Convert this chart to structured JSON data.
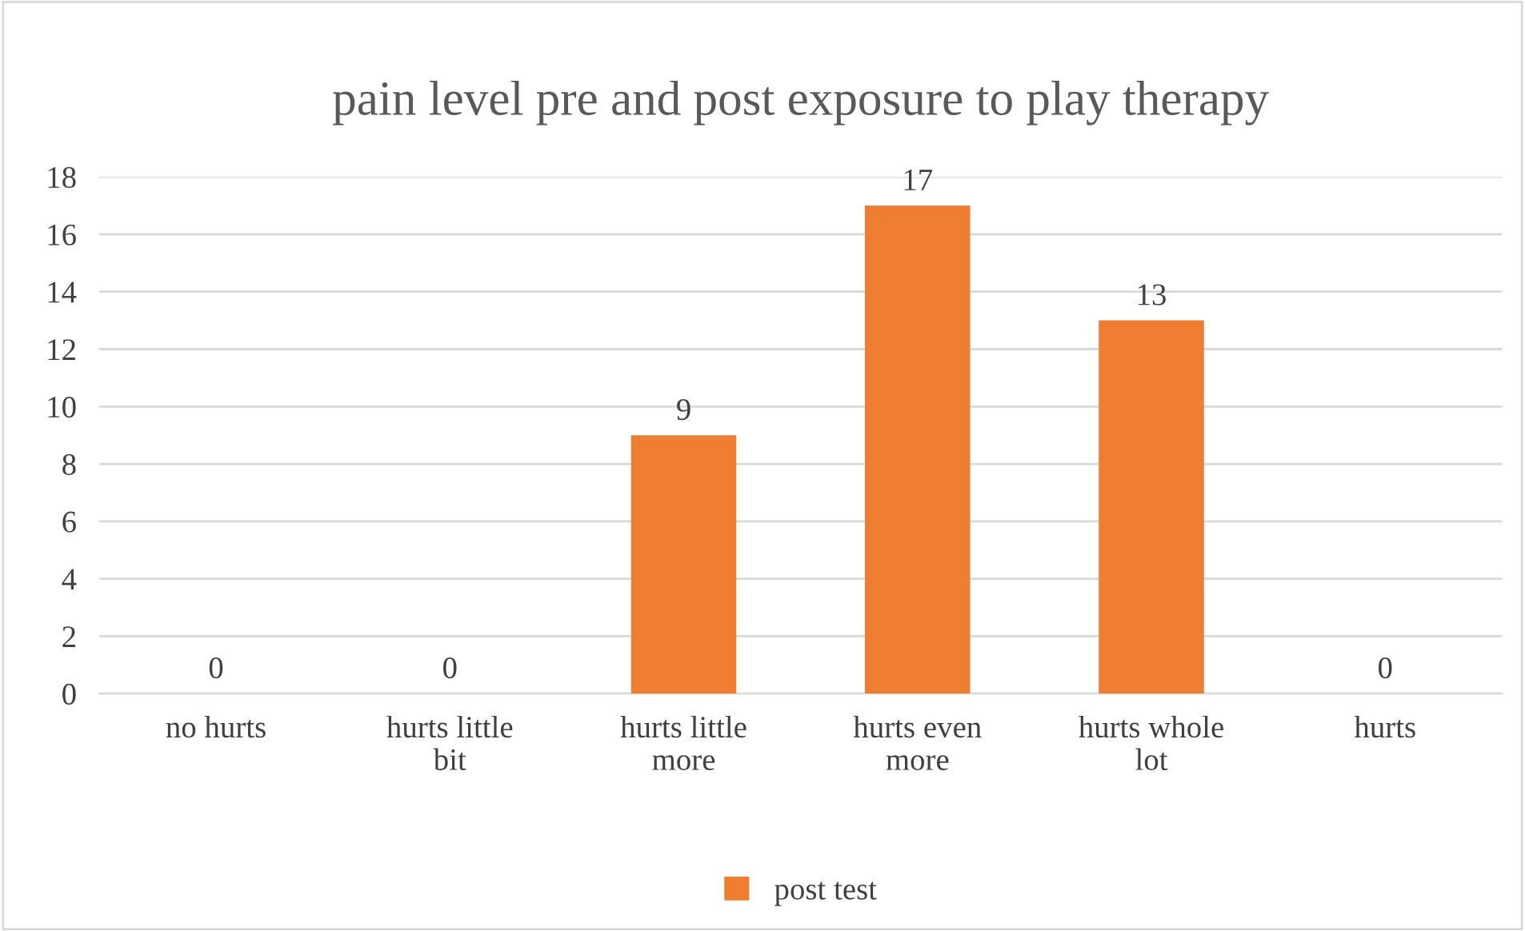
{
  "chart_data": {
    "type": "bar",
    "title": "pain level pre and post exposure to play therapy",
    "categories": [
      "no hurts",
      "hurts little bit",
      "hurts little more",
      "hurts even more",
      "hurts whole lot",
      "hurts"
    ],
    "series": [
      {
        "name": "post test",
        "color": "#ed7d31",
        "values": [
          0,
          0,
          9,
          17,
          13,
          0
        ]
      }
    ],
    "ylim": [
      0,
      18
    ],
    "yticks": [
      0,
      2,
      4,
      6,
      8,
      10,
      12,
      14,
      16,
      18
    ],
    "grid": "y",
    "legend": "bottom",
    "data_labels": true
  }
}
